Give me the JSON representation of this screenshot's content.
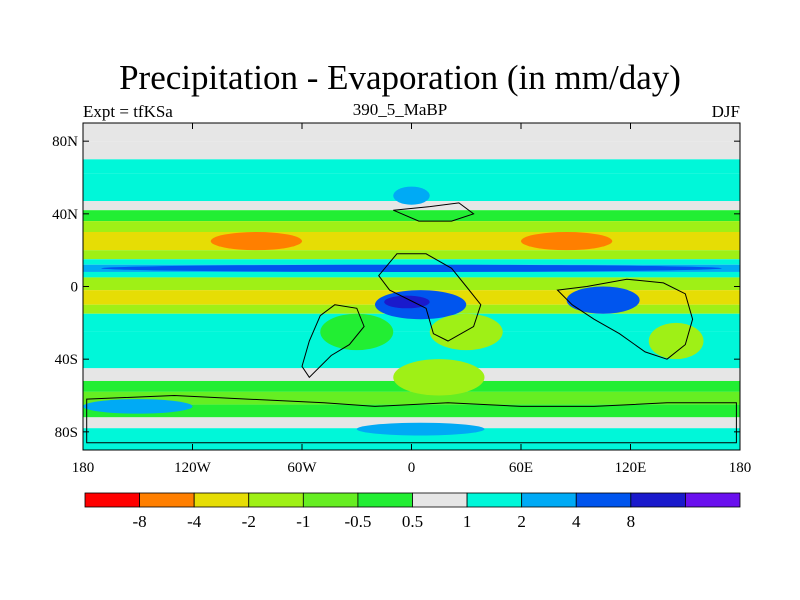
{
  "chart_data": {
    "type": "heatmap",
    "title": "Precipitation - Evaporation (in mm/day)",
    "subtitle_left": "Expt = tfKSa",
    "subtitle_center": "390_5_MaBP",
    "subtitle_right": "DJF",
    "x_ticks": [
      "180",
      "120W",
      "60W",
      "0",
      "60E",
      "120E",
      "180"
    ],
    "x_tick_values": [
      -180,
      -120,
      -60,
      0,
      60,
      120,
      180
    ],
    "y_ticks": [
      "80N",
      "40N",
      "0",
      "40S",
      "80S"
    ],
    "y_tick_values": [
      80,
      40,
      0,
      -40,
      -80
    ],
    "xlim": [
      -180,
      180
    ],
    "ylim": [
      -90,
      90
    ],
    "colorbar_labels": [
      "-8",
      "-4",
      "-2",
      "-1",
      "-0.5",
      "0.5",
      "1",
      "2",
      "4",
      "8"
    ],
    "colorbar_colors": [
      "#ff0000",
      "#ff7f00",
      "#e6dd05",
      "#9ff016",
      "#66ee22",
      "#22ee33",
      "#e6e6e6",
      "#00f7d9",
      "#00aaf5",
      "#0055ee",
      "#1a1acc",
      "#6a10ee"
    ],
    "zonal_bands": [
      {
        "lat_top": 90,
        "lat_bottom": 80,
        "value": 0.7
      },
      {
        "lat_top": 80,
        "lat_bottom": 70,
        "value": 0.8
      },
      {
        "lat_top": 70,
        "lat_bottom": 62,
        "value": 1.3
      },
      {
        "lat_top": 62,
        "lat_bottom": 47,
        "value": 1.6
      },
      {
        "lat_top": 47,
        "lat_bottom": 42,
        "value": 0.7
      },
      {
        "lat_top": 42,
        "lat_bottom": 36,
        "value": 0
      },
      {
        "lat_top": 36,
        "lat_bottom": 30,
        "value": -1.5
      },
      {
        "lat_top": 30,
        "lat_bottom": 20,
        "value": -3
      },
      {
        "lat_top": 20,
        "lat_bottom": 15,
        "value": -1.5
      },
      {
        "lat_top": 15,
        "lat_bottom": 12,
        "value": 1.5
      },
      {
        "lat_top": 12,
        "lat_bottom": 8,
        "value": 3
      },
      {
        "lat_top": 8,
        "lat_bottom": 5,
        "value": 1.5
      },
      {
        "lat_top": 5,
        "lat_bottom": -2,
        "value": -1.5
      },
      {
        "lat_top": -2,
        "lat_bottom": -10,
        "value": -2.5
      },
      {
        "lat_top": -10,
        "lat_bottom": -15,
        "value": -1.5
      },
      {
        "lat_top": -15,
        "lat_bottom": -25,
        "value": 1.5
      },
      {
        "lat_top": -25,
        "lat_bottom": -45,
        "value": 1.4
      },
      {
        "lat_top": -45,
        "lat_bottom": -52,
        "value": 0.7
      },
      {
        "lat_top": -52,
        "lat_bottom": -58,
        "value": 0
      },
      {
        "lat_top": -58,
        "lat_bottom": -65,
        "value": -0.7
      },
      {
        "lat_top": -65,
        "lat_bottom": -72,
        "value": 0
      },
      {
        "lat_top": -72,
        "lat_bottom": -78,
        "value": 0.8
      },
      {
        "lat_top": -78,
        "lat_bottom": -90,
        "value": 1.5
      }
    ],
    "regions": [
      {
        "lon": [
          -110,
          -60
        ],
        "lat": [
          30,
          20
        ],
        "value": -6
      },
      {
        "lon": [
          60,
          110
        ],
        "lat": [
          30,
          20
        ],
        "value": -6
      },
      {
        "lon": [
          -170,
          170
        ],
        "lat": [
          12,
          8
        ],
        "value": 5
      },
      {
        "lon": [
          -20,
          30
        ],
        "lat": [
          -2,
          -18
        ],
        "value": 6
      },
      {
        "lon": [
          -15,
          10
        ],
        "lat": [
          -5,
          -12
        ],
        "value": 9
      },
      {
        "lon": [
          85,
          125
        ],
        "lat": [
          0,
          -15
        ],
        "value": 6
      },
      {
        "lon": [
          -50,
          -10
        ],
        "lat": [
          -15,
          -35
        ],
        "value": 0
      },
      {
        "lon": [
          10,
          50
        ],
        "lat": [
          -15,
          -35
        ],
        "value": -1.5
      },
      {
        "lon": [
          130,
          160
        ],
        "lat": [
          -20,
          -40
        ],
        "value": -1.5
      },
      {
        "lon": [
          -10,
          40
        ],
        "lat": [
          -40,
          -60
        ],
        "value": -1.2
      },
      {
        "lon": [
          -180,
          -120
        ],
        "lat": [
          -62,
          -70
        ],
        "value": 3
      },
      {
        "lon": [
          -10,
          10
        ],
        "lat": [
          55,
          45
        ],
        "value": 3
      },
      {
        "lon": [
          -30,
          40
        ],
        "lat": [
          -75,
          -82
        ],
        "value": 3
      }
    ]
  }
}
